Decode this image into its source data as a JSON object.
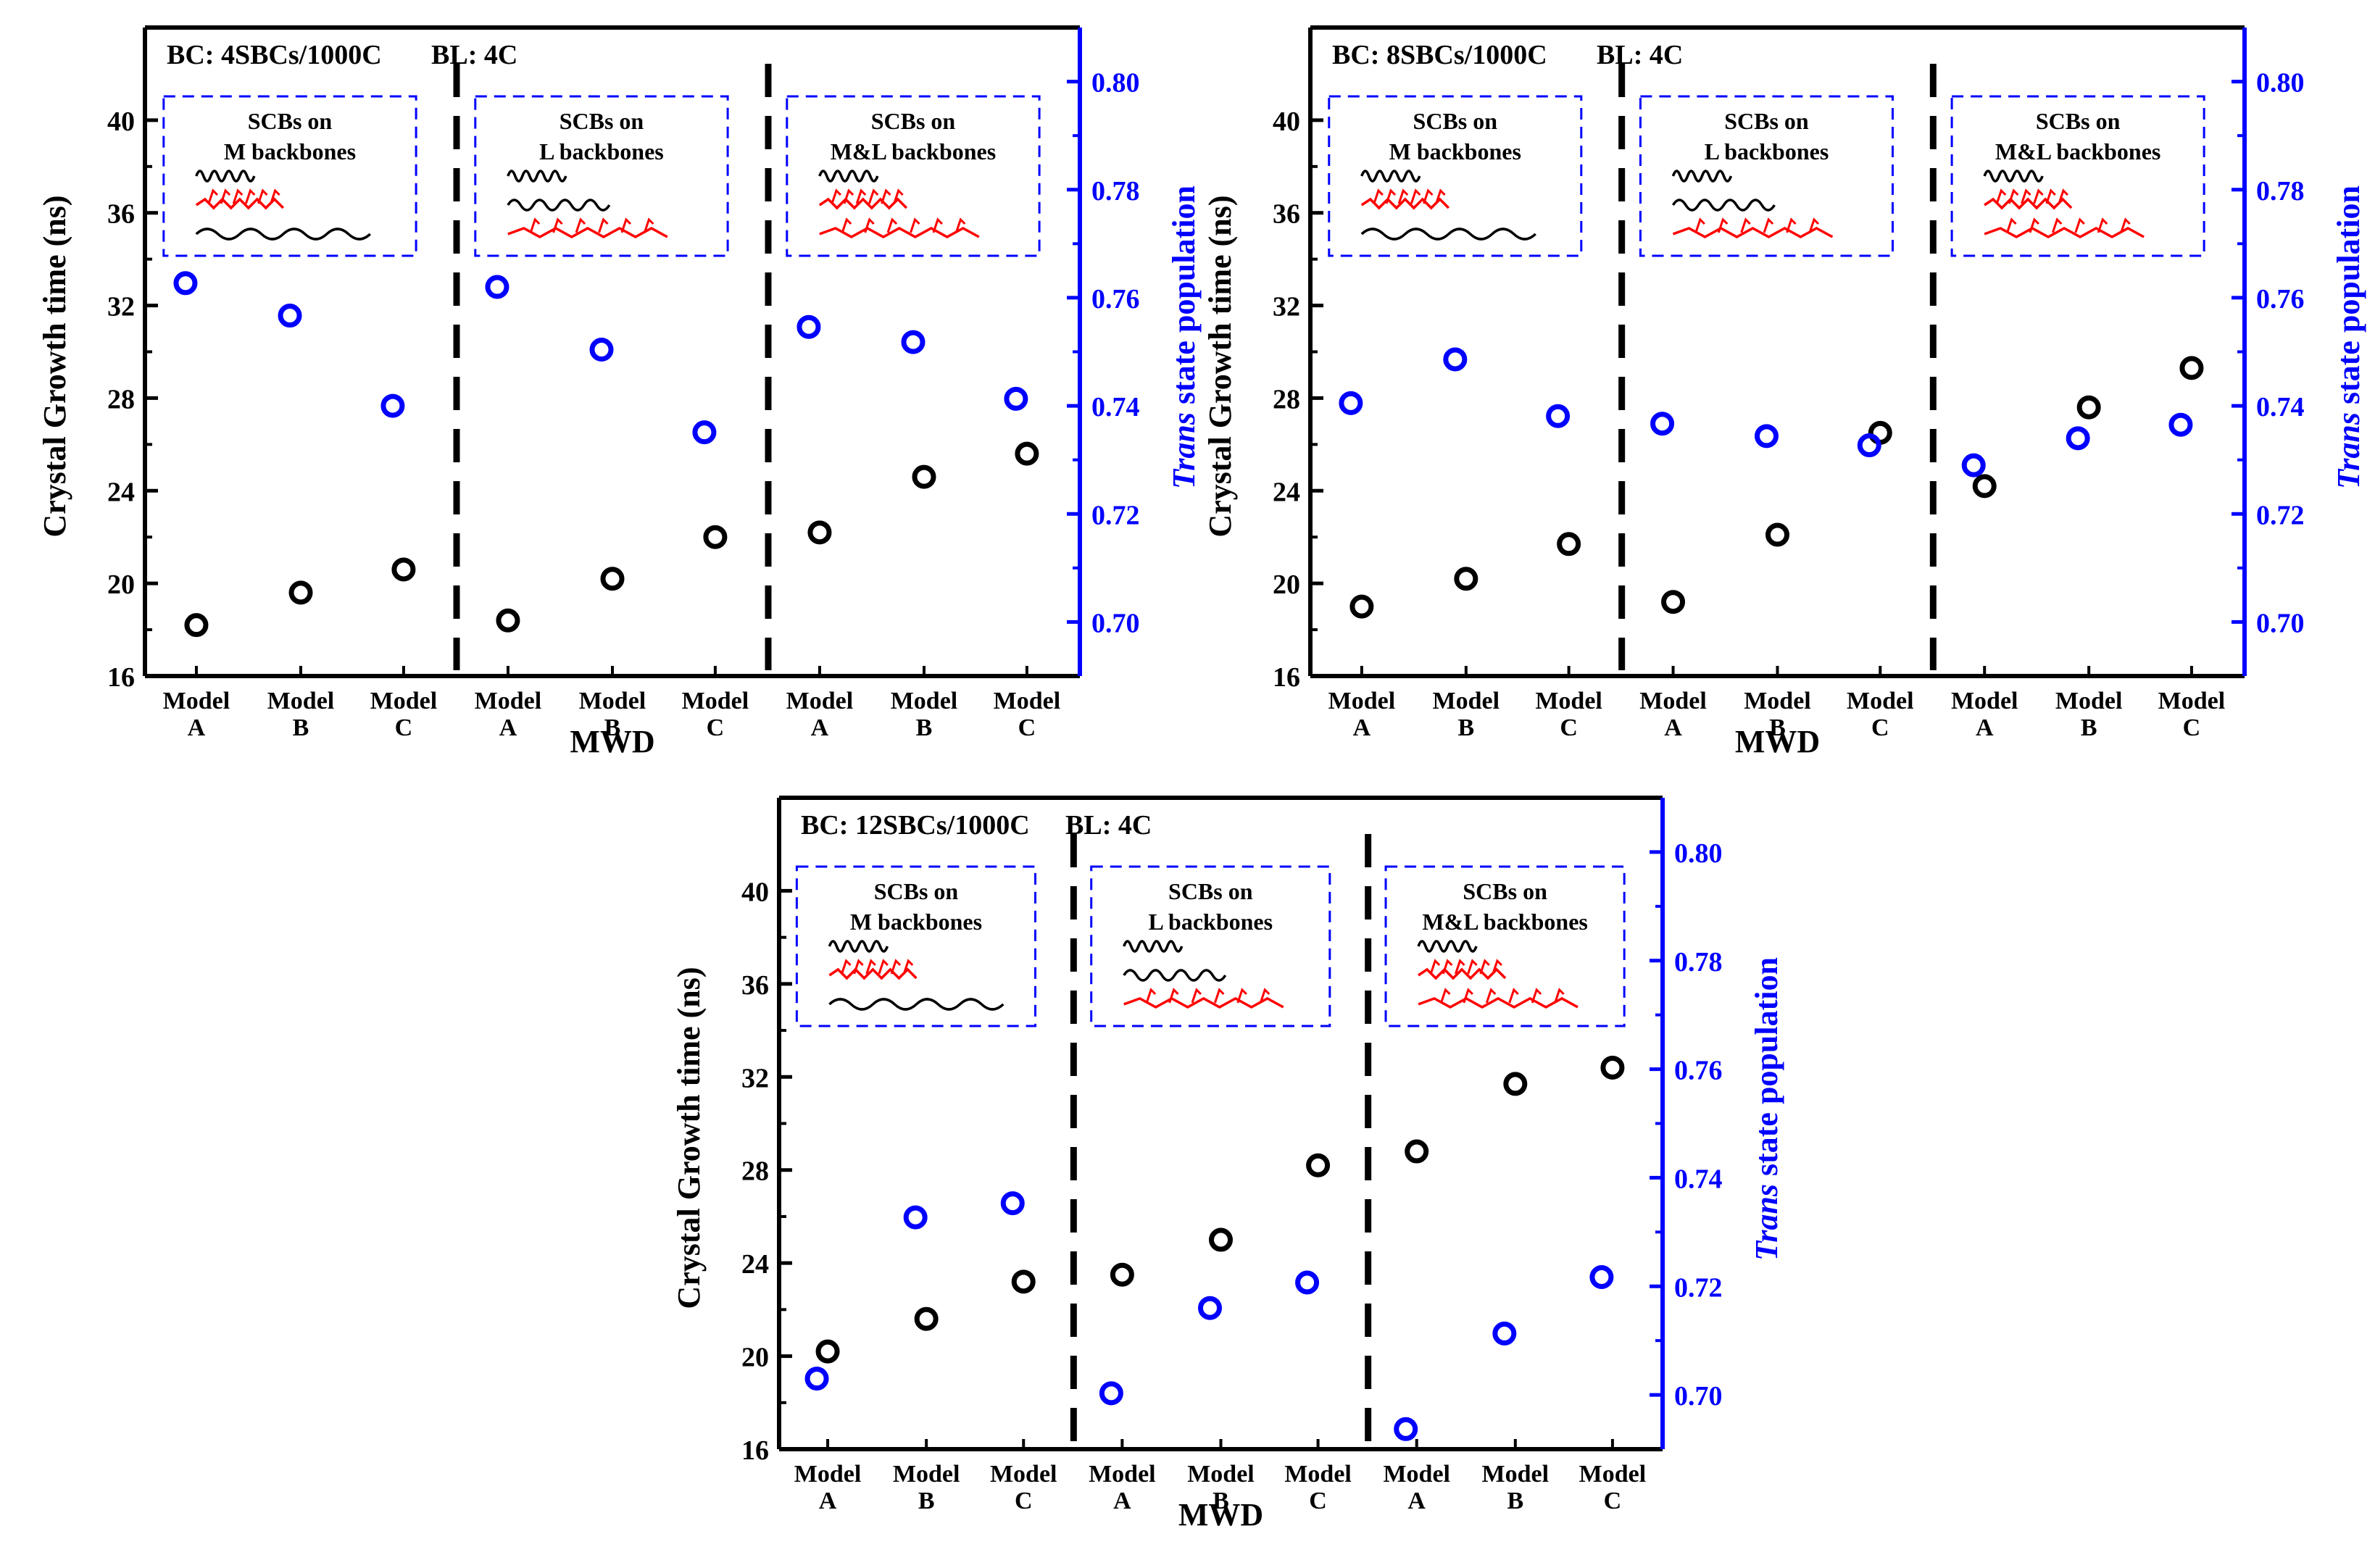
{
  "chart_data": [
    {
      "type": "scatter",
      "title": "BC: 4SBCs/1000C",
      "branch_length": "BL: 4C",
      "xlabel": "MWD",
      "ylabel": "Crystal Growth time (ns)",
      "y2label_italic": "Trans",
      "y2label_rest": " state population",
      "ylim": [
        16,
        44
      ],
      "yticks": [
        "16",
        "20",
        "24",
        "28",
        "32",
        "36",
        "40"
      ],
      "y2lim": [
        0.69,
        0.81
      ],
      "y2ticks": [
        "0.70",
        "0.72",
        "0.74",
        "0.76",
        "0.78",
        "0.80"
      ],
      "colors": {
        "left": "#000000",
        "right": "#0000ff",
        "red_chain": "#ff0000",
        "inset_border": "#0000ff"
      },
      "groups": [
        {
          "inset_title": "SCBs on",
          "inset_subtitle": "M backbones",
          "categories": [
            {
              "line1": "Model",
              "line2": "A"
            },
            {
              "line1": "Model",
              "line2": "B"
            },
            {
              "line1": "Model",
              "line2": "C"
            }
          ],
          "growth_time": [
            18.2,
            19.6,
            20.6
          ],
          "trans": [
            0.7627,
            0.7567,
            0.74
          ]
        },
        {
          "inset_title": "SCBs on",
          "inset_subtitle": "L backbones",
          "categories": [
            {
              "line1": "Model",
              "line2": "A"
            },
            {
              "line1": "Model",
              "line2": "B"
            },
            {
              "line1": "Model",
              "line2": "C"
            }
          ],
          "growth_time": [
            18.4,
            20.2,
            22.0
          ],
          "trans": [
            0.762,
            0.7504,
            0.7351
          ]
        },
        {
          "inset_title": "SCBs on",
          "inset_subtitle": "M&L backbones",
          "categories": [
            {
              "line1": "Model",
              "line2": "A"
            },
            {
              "line1": "Model",
              "line2": "B"
            },
            {
              "line1": "Model",
              "line2": "C"
            }
          ],
          "growth_time": [
            22.2,
            24.6,
            25.6
          ],
          "trans": [
            0.7546,
            0.7518,
            0.7413
          ]
        }
      ]
    },
    {
      "type": "scatter",
      "title": "BC: 8SBCs/1000C",
      "branch_length": "BL: 4C",
      "xlabel": "MWD",
      "ylabel": "Crystal Growth time (ns)",
      "y2label_italic": "Trans",
      "y2label_rest": " state population",
      "ylim": [
        16,
        44
      ],
      "yticks": [
        "16",
        "20",
        "24",
        "28",
        "32",
        "36",
        "40"
      ],
      "y2lim": [
        0.69,
        0.81
      ],
      "y2ticks": [
        "0.70",
        "0.72",
        "0.74",
        "0.76",
        "0.78",
        "0.80"
      ],
      "colors": {
        "left": "#000000",
        "right": "#0000ff",
        "red_chain": "#ff0000",
        "inset_border": "#0000ff"
      },
      "groups": [
        {
          "inset_title": "SCBs on",
          "inset_subtitle": "M backbones",
          "categories": [
            {
              "line1": "Model",
              "line2": "A"
            },
            {
              "line1": "Model",
              "line2": "B"
            },
            {
              "line1": "Model",
              "line2": "C"
            }
          ],
          "growth_time": [
            19.0,
            20.2,
            21.7
          ],
          "trans": [
            0.7405,
            0.7486,
            0.7381
          ]
        },
        {
          "inset_title": "SCBs on",
          "inset_subtitle": "L backbones",
          "categories": [
            {
              "line1": "Model",
              "line2": "A"
            },
            {
              "line1": "Model",
              "line2": "B"
            },
            {
              "line1": "Model",
              "line2": "C"
            }
          ],
          "growth_time": [
            19.2,
            22.1,
            26.5
          ],
          "trans": [
            0.7367,
            0.7344,
            0.7327
          ]
        },
        {
          "inset_title": "SCBs on",
          "inset_subtitle": "M&L backbones",
          "categories": [
            {
              "line1": "Model",
              "line2": "A"
            },
            {
              "line1": "Model",
              "line2": "B"
            },
            {
              "line1": "Model",
              "line2": "C"
            }
          ],
          "growth_time": [
            24.2,
            27.6,
            29.3
          ],
          "trans": [
            0.729,
            0.734,
            0.7365
          ]
        }
      ]
    },
    {
      "type": "scatter",
      "title": "BC: 12SBCs/1000C",
      "branch_length": "BL: 4C",
      "xlabel": "MWD",
      "ylabel": "Crystal Growth time (ns)",
      "y2label_italic": "Trans",
      "y2label_rest": " state population",
      "ylim": [
        16,
        44
      ],
      "yticks": [
        "16",
        "20",
        "24",
        "28",
        "32",
        "36",
        "40"
      ],
      "y2lim": [
        0.69,
        0.81
      ],
      "y2ticks": [
        "0.70",
        "0.72",
        "0.74",
        "0.76",
        "0.78",
        "0.80"
      ],
      "colors": {
        "left": "#000000",
        "right": "#0000ff",
        "red_chain": "#ff0000",
        "inset_border": "#0000ff"
      },
      "groups": [
        {
          "inset_title": "SCBs on",
          "inset_subtitle": "M backbones",
          "categories": [
            {
              "line1": "Model",
              "line2": "A"
            },
            {
              "line1": "Model",
              "line2": "B"
            },
            {
              "line1": "Model",
              "line2": "C"
            }
          ],
          "growth_time": [
            20.2,
            21.6,
            23.2
          ],
          "trans": [
            0.703,
            0.7327,
            0.7353
          ]
        },
        {
          "inset_title": "SCBs on",
          "inset_subtitle": "L backbones",
          "categories": [
            {
              "line1": "Model",
              "line2": "A"
            },
            {
              "line1": "Model",
              "line2": "B"
            },
            {
              "line1": "Model",
              "line2": "C"
            }
          ],
          "growth_time": [
            23.5,
            25.0,
            28.2
          ],
          "trans": [
            0.7003,
            0.716,
            0.7207
          ]
        },
        {
          "inset_title": "SCBs on",
          "inset_subtitle": "M&L backbones",
          "categories": [
            {
              "line1": "Model",
              "line2": "A"
            },
            {
              "line1": "Model",
              "line2": "B"
            },
            {
              "line1": "Model",
              "line2": "C"
            }
          ],
          "growth_time": [
            28.8,
            31.7,
            32.4
          ],
          "trans": [
            0.6937,
            0.7113,
            0.7217
          ]
        }
      ]
    }
  ]
}
